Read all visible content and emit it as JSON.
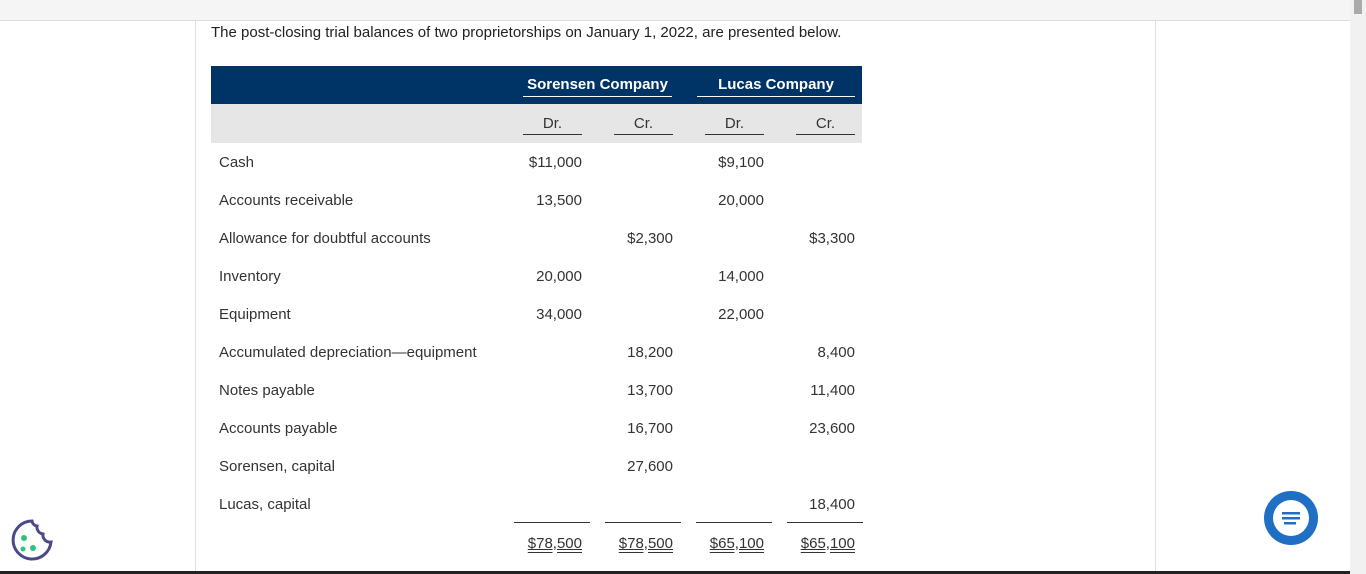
{
  "intro": "The post-closing trial balances of two proprietorships on January 1, 2022, are presented below.",
  "table": {
    "companies": [
      "Sorensen Company",
      "Lucas Company"
    ],
    "subheaders": [
      "Dr.",
      "Cr.",
      "Dr.",
      "Cr."
    ],
    "rows": [
      [
        "Cash",
        "$11,000",
        null,
        "$9,100",
        null
      ],
      [
        "Accounts receivable",
        "13,500",
        null,
        "20,000",
        null
      ],
      [
        "Allowance for doubtful accounts",
        null,
        "$2,300",
        null,
        "$3,300"
      ],
      [
        "Inventory",
        "20,000",
        null,
        "14,000",
        null
      ],
      [
        "Equipment",
        "34,000",
        null,
        "22,000",
        null
      ],
      [
        "Accumulated depreciation—equipment",
        null,
        "18,200",
        null,
        "8,400"
      ],
      [
        "Notes payable",
        null,
        "13,700",
        null,
        "11,400"
      ],
      [
        "Accounts payable",
        null,
        "16,700",
        null,
        "23,600"
      ],
      [
        "Sorensen, capital",
        null,
        "27,600",
        null,
        null
      ],
      [
        "Lucas, capital",
        null,
        null,
        null,
        "18,400"
      ]
    ],
    "totals": [
      "$78,500",
      "$78,500",
      "$65,100",
      "$65,100"
    ]
  }
}
